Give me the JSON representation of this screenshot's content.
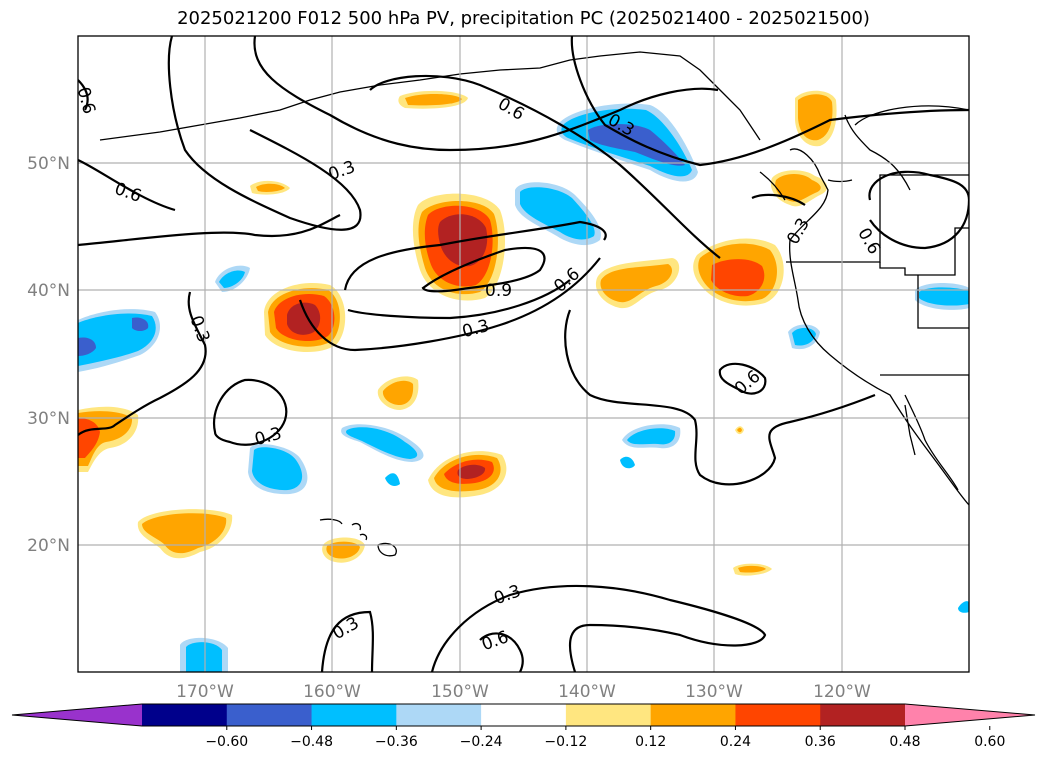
{
  "title": "2025021200 F012 500 hPa PV, precipitation PC (2025021400 - 2025021500)",
  "lat_labels": [
    "50°N",
    "40°N",
    "30°N",
    "20°N"
  ],
  "lon_labels": [
    "170°W",
    "160°W",
    "150°W",
    "140°W",
    "130°W",
    "120°W"
  ],
  "contour_labels": [
    "0.6",
    "0.6",
    "0.3",
    "0.3",
    "0.6",
    "0.3",
    "0.3",
    "0.9",
    "0.6",
    "0.3",
    "0.3",
    "0.6",
    "0.6",
    "0.3",
    "0.3",
    "0.6"
  ],
  "colorbar": {
    "ticks": [
      "−0.60",
      "−0.48",
      "−0.36",
      "−0.24",
      "−0.12",
      "0.12",
      "0.24",
      "0.36",
      "0.48",
      "0.60"
    ],
    "colors": [
      "#9932cc",
      "#00008b",
      "#3a5fcd",
      "#00bfff",
      "#add8f6",
      "#ffffff",
      "#ffe680",
      "#ffa500",
      "#ff4500",
      "#b22222",
      "#ff82ab"
    ]
  }
}
